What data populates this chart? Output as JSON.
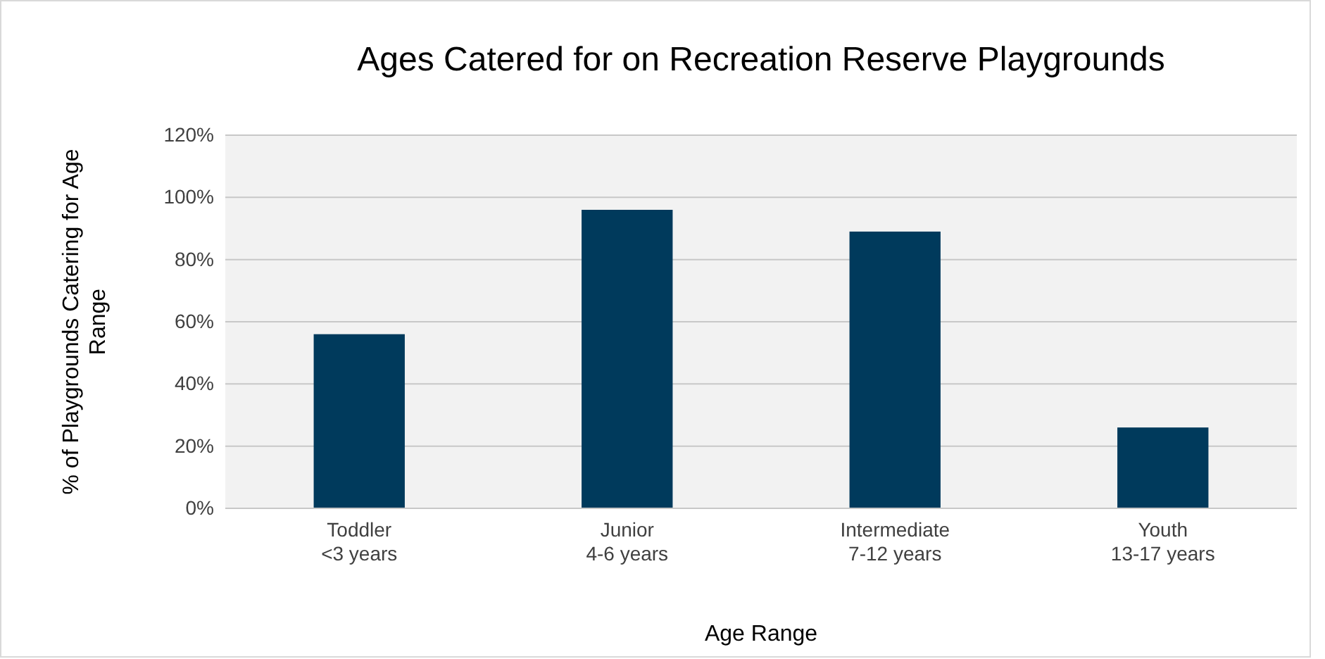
{
  "chart_data": {
    "type": "bar",
    "title": "Ages Catered for on Recreation Reserve Playgrounds",
    "xlabel": "Age Range",
    "ylabel": "% of Playgrounds Catering for Age Range",
    "categories": [
      "Toddler\n<3 years",
      "Junior\n4-6 years",
      "Intermediate\n7-12 years",
      "Youth\n13-17 years"
    ],
    "values": [
      56,
      96,
      89,
      26
    ],
    "color": "#003a5c",
    "ylim": [
      0,
      120
    ],
    "yticks": [
      {
        "value": 0,
        "label": "0%"
      },
      {
        "value": 20,
        "label": "20%"
      },
      {
        "value": 40,
        "label": "40%"
      },
      {
        "value": 60,
        "label": "60%"
      },
      {
        "value": 80,
        "label": "80%"
      },
      {
        "value": 100,
        "label": "100%"
      },
      {
        "value": 120,
        "label": "120%"
      }
    ],
    "grid": "y"
  }
}
